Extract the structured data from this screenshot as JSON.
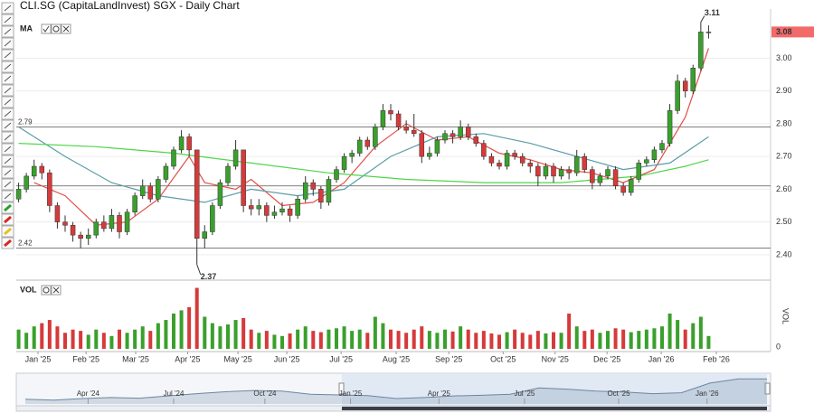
{
  "chart_data": [
    {
      "type": "candlestick",
      "title": "CLI.SG (CapitaLandInvest) SGX - Daily Chart",
      "indicator_label": "MA",
      "x": [
        0,
        1,
        2,
        3,
        4,
        5,
        6,
        7,
        8,
        9,
        10,
        11,
        12,
        13,
        14,
        15,
        16,
        17,
        18,
        19,
        20,
        21,
        22,
        23,
        24,
        25,
        26,
        27,
        28,
        29,
        30,
        31,
        32,
        33,
        34,
        35,
        36,
        37,
        38,
        39,
        40,
        41,
        42,
        43,
        44,
        45,
        46,
        47,
        48,
        49,
        50,
        51,
        52,
        53,
        54,
        55,
        56,
        57,
        58,
        59,
        60,
        61,
        62,
        63,
        64,
        65,
        66,
        67,
        68,
        69,
        70,
        71,
        72,
        73,
        74,
        75,
        76,
        77,
        78,
        79,
        80,
        81,
        82,
        83,
        84,
        85,
        86,
        87,
        88,
        89
      ],
      "ohlc": [
        [
          2.57,
          2.62,
          2.56,
          2.6
        ],
        [
          2.6,
          2.65,
          2.59,
          2.64
        ],
        [
          2.64,
          2.69,
          2.63,
          2.67
        ],
        [
          2.67,
          2.68,
          2.63,
          2.65
        ],
        [
          2.65,
          2.66,
          2.53,
          2.55
        ],
        [
          2.55,
          2.56,
          2.48,
          2.5
        ],
        [
          2.5,
          2.52,
          2.47,
          2.49
        ],
        [
          2.49,
          2.5,
          2.44,
          2.46
        ],
        [
          2.46,
          2.47,
          2.42,
          2.45
        ],
        [
          2.45,
          2.48,
          2.43,
          2.46
        ],
        [
          2.46,
          2.51,
          2.45,
          2.5
        ],
        [
          2.5,
          2.52,
          2.47,
          2.48
        ],
        [
          2.48,
          2.54,
          2.47,
          2.52
        ],
        [
          2.52,
          2.53,
          2.45,
          2.47
        ],
        [
          2.47,
          2.54,
          2.46,
          2.53
        ],
        [
          2.53,
          2.59,
          2.52,
          2.58
        ],
        [
          2.58,
          2.63,
          2.57,
          2.61
        ],
        [
          2.61,
          2.62,
          2.56,
          2.57
        ],
        [
          2.57,
          2.64,
          2.56,
          2.63
        ],
        [
          2.63,
          2.68,
          2.62,
          2.67
        ],
        [
          2.67,
          2.73,
          2.66,
          2.72
        ],
        [
          2.72,
          2.78,
          2.71,
          2.76
        ],
        [
          2.76,
          2.77,
          2.7,
          2.72
        ],
        [
          2.72,
          2.72,
          2.37,
          2.45
        ],
        [
          2.45,
          2.49,
          2.42,
          2.47
        ],
        [
          2.47,
          2.56,
          2.46,
          2.55
        ],
        [
          2.55,
          2.63,
          2.54,
          2.62
        ],
        [
          2.62,
          2.68,
          2.61,
          2.67
        ],
        [
          2.67,
          2.75,
          2.66,
          2.72
        ],
        [
          2.72,
          2.72,
          2.53,
          2.55
        ],
        [
          2.55,
          2.57,
          2.52,
          2.54
        ],
        [
          2.54,
          2.57,
          2.52,
          2.55
        ],
        [
          2.55,
          2.56,
          2.5,
          2.52
        ],
        [
          2.52,
          2.55,
          2.51,
          2.53
        ],
        [
          2.53,
          2.56,
          2.52,
          2.54
        ],
        [
          2.54,
          2.55,
          2.5,
          2.52
        ],
        [
          2.52,
          2.58,
          2.51,
          2.57
        ],
        [
          2.57,
          2.64,
          2.56,
          2.62
        ],
        [
          2.62,
          2.63,
          2.58,
          2.6
        ],
        [
          2.6,
          2.61,
          2.54,
          2.56
        ],
        [
          2.56,
          2.64,
          2.55,
          2.63
        ],
        [
          2.63,
          2.67,
          2.62,
          2.66
        ],
        [
          2.66,
          2.71,
          2.65,
          2.7
        ],
        [
          2.7,
          2.72,
          2.68,
          2.71
        ],
        [
          2.71,
          2.76,
          2.7,
          2.75
        ],
        [
          2.75,
          2.76,
          2.72,
          2.73
        ],
        [
          2.73,
          2.8,
          2.72,
          2.79
        ],
        [
          2.79,
          2.86,
          2.78,
          2.84
        ],
        [
          2.84,
          2.86,
          2.81,
          2.83
        ],
        [
          2.83,
          2.84,
          2.78,
          2.79
        ],
        [
          2.79,
          2.81,
          2.77,
          2.78
        ],
        [
          2.78,
          2.83,
          2.76,
          2.77
        ],
        [
          2.77,
          2.78,
          2.68,
          2.7
        ],
        [
          2.7,
          2.73,
          2.69,
          2.71
        ],
        [
          2.71,
          2.76,
          2.7,
          2.75
        ],
        [
          2.75,
          2.78,
          2.74,
          2.77
        ],
        [
          2.77,
          2.78,
          2.74,
          2.76
        ],
        [
          2.76,
          2.81,
          2.75,
          2.79
        ],
        [
          2.79,
          2.8,
          2.75,
          2.76
        ],
        [
          2.76,
          2.77,
          2.73,
          2.74
        ],
        [
          2.74,
          2.75,
          2.69,
          2.7
        ],
        [
          2.7,
          2.71,
          2.67,
          2.68
        ],
        [
          2.68,
          2.69,
          2.66,
          2.67
        ],
        [
          2.67,
          2.72,
          2.66,
          2.71
        ],
        [
          2.71,
          2.72,
          2.69,
          2.7
        ],
        [
          2.7,
          2.71,
          2.67,
          2.68
        ],
        [
          2.68,
          2.69,
          2.65,
          2.67
        ],
        [
          2.67,
          2.68,
          2.61,
          2.64
        ],
        [
          2.64,
          2.68,
          2.63,
          2.67
        ],
        [
          2.67,
          2.68,
          2.62,
          2.64
        ],
        [
          2.64,
          2.67,
          2.63,
          2.66
        ],
        [
          2.66,
          2.67,
          2.63,
          2.65
        ],
        [
          2.65,
          2.72,
          2.64,
          2.7
        ],
        [
          2.7,
          2.71,
          2.65,
          2.66
        ],
        [
          2.66,
          2.67,
          2.6,
          2.62
        ],
        [
          2.62,
          2.65,
          2.61,
          2.64
        ],
        [
          2.64,
          2.67,
          2.63,
          2.66
        ],
        [
          2.66,
          2.67,
          2.6,
          2.61
        ],
        [
          2.61,
          2.62,
          2.58,
          2.59
        ],
        [
          2.59,
          2.64,
          2.58,
          2.63
        ],
        [
          2.63,
          2.69,
          2.62,
          2.68
        ],
        [
          2.68,
          2.7,
          2.67,
          2.69
        ],
        [
          2.69,
          2.73,
          2.68,
          2.72
        ],
        [
          2.72,
          2.75,
          2.71,
          2.74
        ],
        [
          2.74,
          2.86,
          2.73,
          2.84
        ],
        [
          2.84,
          2.95,
          2.83,
          2.93
        ],
        [
          2.93,
          2.94,
          2.88,
          2.9
        ],
        [
          2.9,
          2.98,
          2.89,
          2.97
        ],
        [
          2.97,
          3.11,
          2.96,
          3.08
        ],
        [
          3.08,
          3.1,
          3.06,
          3.08
        ]
      ],
      "up_color": "#3aa02c",
      "down_color": "#d63a3a",
      "wick_color": "#333333",
      "ma_lines": [
        {
          "color": "#e0504a",
          "x": [
            2,
            6,
            10,
            14,
            18,
            22,
            24,
            28,
            30,
            34,
            38,
            42,
            46,
            50,
            54,
            58,
            62,
            66,
            70,
            74,
            78,
            82,
            86,
            89
          ],
          "values": [
            2.62,
            2.58,
            2.49,
            2.5,
            2.57,
            2.7,
            2.62,
            2.6,
            2.63,
            2.55,
            2.56,
            2.62,
            2.73,
            2.8,
            2.75,
            2.76,
            2.71,
            2.69,
            2.66,
            2.65,
            2.62,
            2.66,
            2.82,
            3.03
          ]
        },
        {
          "color": "#5a9ea6",
          "x": [
            0,
            6,
            12,
            18,
            24,
            30,
            36,
            42,
            48,
            54,
            60,
            66,
            72,
            78,
            84,
            89
          ],
          "values": [
            2.79,
            2.7,
            2.62,
            2.58,
            2.56,
            2.6,
            2.58,
            2.6,
            2.7,
            2.76,
            2.77,
            2.74,
            2.7,
            2.66,
            2.68,
            2.76
          ]
        },
        {
          "color": "#4fd64a",
          "x": [
            0,
            10,
            20,
            30,
            40,
            50,
            60,
            70,
            80,
            86,
            89
          ],
          "values": [
            2.74,
            2.73,
            2.71,
            2.68,
            2.65,
            2.63,
            2.62,
            2.62,
            2.64,
            2.67,
            2.69
          ]
        }
      ],
      "hlines": [
        {
          "value": 2.79,
          "label": "2.79"
        },
        {
          "value": 2.61
        },
        {
          "value": 2.42,
          "label": "2.42"
        }
      ],
      "annotations": [
        {
          "x": 88,
          "value": 3.11,
          "label": "3.11"
        },
        {
          "x": 23,
          "value": 2.37,
          "label": "2.37"
        }
      ],
      "last_price": {
        "value": 3.08,
        "label": "3.08"
      },
      "last_price_color": "#f26a6a",
      "xlim": [
        -0.3,
        97
      ],
      "xticks": [
        {
          "value": 2.5,
          "label": "Jan '25"
        },
        {
          "value": 8.7,
          "label": "Feb '25"
        },
        {
          "value": 15.1,
          "label": "Mar '25"
        },
        {
          "value": 21.8,
          "label": "Apr '25"
        },
        {
          "value": 28.3,
          "label": "May '25"
        },
        {
          "value": 34.6,
          "label": "Jun '25"
        },
        {
          "value": 41.6,
          "label": "Jul '25"
        },
        {
          "value": 48.7,
          "label": "Aug '25"
        },
        {
          "value": 55.5,
          "label": "Sep '25"
        },
        {
          "value": 62.5,
          "label": "Oct '25"
        },
        {
          "value": 69.2,
          "label": "Nov '25"
        },
        {
          "value": 75.9,
          "label": "Dec '25"
        },
        {
          "value": 82.9,
          "label": "Jan '26"
        },
        {
          "value": 90.0,
          "label": "Feb '26"
        }
      ],
      "ylim": [
        2.35,
        3.15
      ],
      "yticks": [
        {
          "value": 2.4,
          "label": "2.40"
        },
        {
          "value": 2.5,
          "label": "2.50"
        },
        {
          "value": 2.6,
          "label": "2.60"
        },
        {
          "value": 2.7,
          "label": "2.70"
        },
        {
          "value": 2.8,
          "label": "2.80"
        },
        {
          "value": 2.9,
          "label": "2.90"
        },
        {
          "value": 3.0,
          "label": "3.00"
        }
      ],
      "grid": true
    },
    {
      "type": "bar",
      "legend_label": "VOL",
      "axis_label": "VOL",
      "values": [
        30,
        25,
        35,
        40,
        45,
        35,
        25,
        30,
        28,
        22,
        30,
        25,
        20,
        30,
        25,
        30,
        35,
        28,
        40,
        45,
        55,
        60,
        65,
        95,
        50,
        40,
        35,
        38,
        45,
        48,
        30,
        25,
        28,
        22,
        20,
        24,
        30,
        35,
        28,
        26,
        30,
        32,
        35,
        28,
        30,
        25,
        50,
        40,
        30,
        28,
        25,
        30,
        35,
        28,
        25,
        30,
        27,
        35,
        30,
        25,
        28,
        24,
        22,
        26,
        30,
        25,
        22,
        28,
        24,
        26,
        25,
        55,
        35,
        28,
        30,
        25,
        28,
        32,
        30,
        26,
        28,
        30,
        32,
        35,
        55,
        45,
        30,
        40,
        50,
        20
      ],
      "ylim": [
        0,
        100
      ],
      "yticks": [
        0
      ]
    },
    {
      "type": "area",
      "x": [
        0,
        1,
        2,
        3,
        4,
        5,
        6,
        7,
        8,
        9,
        10,
        11,
        12,
        13,
        14,
        15,
        16,
        17,
        18,
        19,
        20,
        21,
        22,
        23,
        24,
        25,
        26
      ],
      "values": [
        2.45,
        2.42,
        2.47,
        2.5,
        2.48,
        2.55,
        2.62,
        2.68,
        2.72,
        2.7,
        2.6,
        2.58,
        2.56,
        2.47,
        2.5,
        2.55,
        2.57,
        2.6,
        2.8,
        2.76,
        2.7,
        2.67,
        2.62,
        2.65,
        2.95,
        3.08,
        3.08
      ],
      "color": "#8fa6bd",
      "xlim": [
        0,
        26
      ],
      "ylim": [
        2.3,
        3.2
      ],
      "xticks": [
        {
          "value": 2.2,
          "label": "Apr '24"
        },
        {
          "value": 5.2,
          "label": "Jul '24"
        },
        {
          "value": 8.4,
          "label": "Oct '24"
        },
        {
          "value": 11.4,
          "label": "Jan '25"
        },
        {
          "value": 14.5,
          "label": "Apr '25"
        },
        {
          "value": 17.5,
          "label": "Jul '25"
        },
        {
          "value": 20.8,
          "label": "Oct '25"
        },
        {
          "value": 23.9,
          "label": "Jan '26"
        }
      ]
    }
  ]
}
